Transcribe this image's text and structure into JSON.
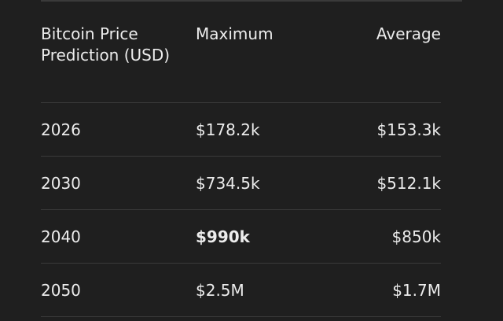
{
  "table": {
    "headers": {
      "year": "Bitcoin Price Prediction (USD)",
      "maximum": "Maximum",
      "average": "Average"
    },
    "rows": [
      {
        "year": "2026",
        "maximum": "$178.2k",
        "average": "$153.3k"
      },
      {
        "year": "2030",
        "maximum": "$734.5k",
        "average": "$512.1k"
      },
      {
        "year": "2040",
        "maximum": "$990k",
        "average": "$850k",
        "maximum_bold": true
      },
      {
        "year": "2050",
        "maximum": "$2.5M",
        "average": "$1.7M"
      }
    ]
  }
}
